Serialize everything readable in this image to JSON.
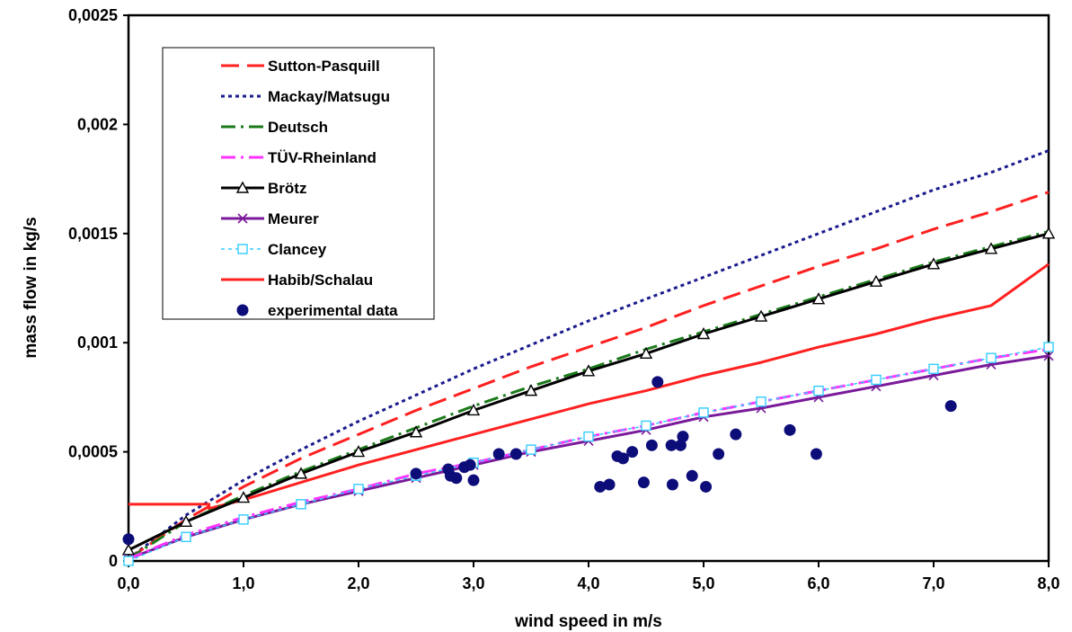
{
  "chart_data": {
    "type": "line",
    "xlabel": "wind speed in m/s",
    "ylabel": "mass flow in kg/s",
    "xlim": [
      0,
      8
    ],
    "ylim": [
      0,
      0.0025
    ],
    "x_ticks": [
      "0,0",
      "1,0",
      "2,0",
      "3,0",
      "4,0",
      "5,0",
      "6,0",
      "7,0",
      "8,0"
    ],
    "y_ticks": [
      "0",
      "0,0005",
      "0,001",
      "0,0015",
      "0,002",
      "0,0025"
    ],
    "grid": false,
    "legend_position": "top-left",
    "series": [
      {
        "name": "Sutton-Pasquill",
        "color": "#ff2020",
        "style": "dashed",
        "marker": "none",
        "x": [
          0,
          0.5,
          1,
          1.5,
          2,
          2.5,
          3,
          3.5,
          4,
          4.5,
          5,
          5.5,
          6,
          6.5,
          7,
          7.5,
          8
        ],
        "y": [
          1e-05,
          0.00019,
          0.00034,
          0.00047,
          0.00058,
          0.00069,
          0.00079,
          0.00089,
          0.00098,
          0.00107,
          0.00117,
          0.00126,
          0.00135,
          0.00143,
          0.00152,
          0.0016,
          0.00169
        ]
      },
      {
        "name": "Mackay/Matsugu",
        "color": "#1a1a8c",
        "style": "dotted",
        "marker": "none",
        "x": [
          0,
          0.5,
          1,
          1.5,
          2,
          2.5,
          3,
          3.5,
          4,
          4.5,
          5,
          5.5,
          6,
          6.5,
          7,
          7.5,
          8
        ],
        "y": [
          1e-05,
          0.00021,
          0.00037,
          0.00051,
          0.00064,
          0.00076,
          0.00088,
          0.00099,
          0.0011,
          0.0012,
          0.0013,
          0.0014,
          0.0015,
          0.0016,
          0.0017,
          0.00178,
          0.00188
        ]
      },
      {
        "name": "Deutsch",
        "color": "#1a7a1a",
        "style": "dashdot",
        "marker": "none",
        "x": [
          0,
          0.5,
          1,
          1.5,
          2,
          2.5,
          3,
          3.5,
          4,
          4.5,
          5,
          5.5,
          6,
          6.5,
          7,
          7.5,
          8
        ],
        "y": [
          1e-05,
          0.00018,
          0.0003,
          0.00041,
          0.00051,
          0.00061,
          0.00071,
          0.0008,
          0.00088,
          0.00097,
          0.00105,
          0.00113,
          0.00121,
          0.00129,
          0.00137,
          0.00144,
          0.00151
        ]
      },
      {
        "name": "TÜV-Rheinland",
        "color": "#ff33ff",
        "style": "dashdot",
        "marker": "none",
        "x": [
          0,
          0.5,
          1,
          1.5,
          2,
          2.5,
          3,
          3.5,
          4,
          4.5,
          5,
          5.5,
          6,
          6.5,
          7,
          7.5,
          8
        ],
        "y": [
          1e-05,
          0.00012,
          0.0002,
          0.00027,
          0.00033,
          0.0004,
          0.00045,
          0.00051,
          0.00057,
          0.00062,
          0.00068,
          0.00073,
          0.00078,
          0.00083,
          0.00088,
          0.00093,
          0.00097
        ]
      },
      {
        "name": "Brötz",
        "color": "#000000",
        "style": "solid",
        "marker": "triangle",
        "x": [
          0,
          0.5,
          1,
          1.5,
          2,
          2.5,
          3,
          3.5,
          4,
          4.5,
          5,
          5.5,
          6,
          6.5,
          7,
          7.5,
          8
        ],
        "y": [
          5e-05,
          0.00018,
          0.00029,
          0.0004,
          0.0005,
          0.00059,
          0.00069,
          0.00078,
          0.00087,
          0.00095,
          0.00104,
          0.00112,
          0.0012,
          0.00128,
          0.00136,
          0.00143,
          0.0015
        ]
      },
      {
        "name": "Meurer",
        "color": "#7a1a9a",
        "style": "solid",
        "marker": "x",
        "x": [
          0,
          0.5,
          1,
          1.5,
          2,
          2.5,
          3,
          3.5,
          4,
          4.5,
          5,
          5.5,
          6,
          6.5,
          7,
          7.5,
          8
        ],
        "y": [
          1e-05,
          0.00011,
          0.00019,
          0.00026,
          0.00032,
          0.00038,
          0.00044,
          0.0005,
          0.00055,
          0.0006,
          0.00066,
          0.0007,
          0.00075,
          0.0008,
          0.00085,
          0.0009,
          0.00094
        ]
      },
      {
        "name": "Clancey",
        "color": "#33ccff",
        "style": "dotted",
        "marker": "square",
        "x": [
          0,
          0.5,
          1,
          1.5,
          2,
          2.5,
          3,
          3.5,
          4,
          4.5,
          5,
          5.5,
          6,
          6.5,
          7,
          7.5,
          8
        ],
        "y": [
          0,
          0.00011,
          0.00019,
          0.00026,
          0.00033,
          0.00039,
          0.00045,
          0.00051,
          0.00057,
          0.00062,
          0.00068,
          0.00073,
          0.00078,
          0.00083,
          0.00088,
          0.00093,
          0.00098
        ]
      },
      {
        "name": "Habib/Schalau",
        "color": "#ff2020",
        "style": "solid",
        "marker": "none",
        "x": [
          0,
          0.7,
          0.7,
          1,
          1.5,
          2,
          2.5,
          3,
          3.5,
          4,
          4.5,
          5,
          5.5,
          6,
          6.5,
          7,
          7.5,
          8
        ],
        "y": [
          0.00026,
          0.00026,
          0.00024,
          0.00028,
          0.00036,
          0.00044,
          0.00051,
          0.00058,
          0.00065,
          0.00072,
          0.00078,
          0.00085,
          0.00091,
          0.00098,
          0.00104,
          0.00111,
          0.00117,
          0.00136
        ]
      },
      {
        "name": "experimental data",
        "color": "#0d0d7a",
        "style": "none",
        "marker": "circle",
        "x": [
          0,
          2.5,
          2.78,
          2.8,
          2.85,
          2.92,
          2.97,
          3.0,
          3.22,
          3.37,
          4.1,
          4.18,
          4.25,
          4.3,
          4.38,
          4.48,
          4.55,
          4.6,
          4.72,
          4.73,
          4.8,
          4.82,
          4.9,
          5.02,
          5.13,
          5.28,
          5.75,
          5.98,
          7.15
        ],
        "y": [
          0.0001,
          0.0004,
          0.00042,
          0.00039,
          0.00038,
          0.00043,
          0.00044,
          0.00037,
          0.00049,
          0.00049,
          0.00034,
          0.00035,
          0.00048,
          0.00047,
          0.0005,
          0.00036,
          0.00053,
          0.00082,
          0.00053,
          0.00035,
          0.00053,
          0.00057,
          0.00039,
          0.00034,
          0.00049,
          0.00058,
          0.0006,
          0.00049,
          0.00071
        ]
      }
    ]
  }
}
